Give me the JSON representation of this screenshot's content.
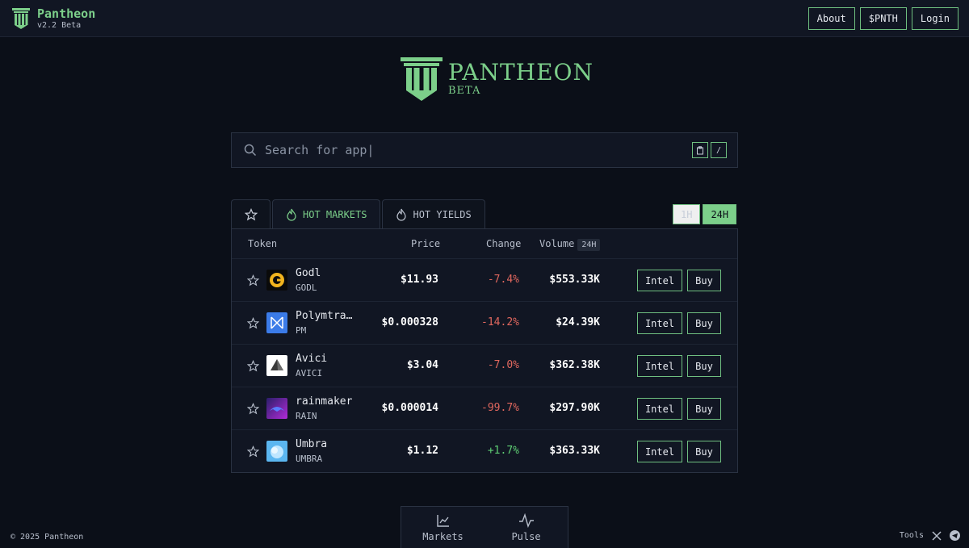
{
  "brand": {
    "name": "Pantheon",
    "version": "v2.2 Beta"
  },
  "nav": {
    "about": "About",
    "token": "$PNTH",
    "login": "Login"
  },
  "hero": {
    "title": "PANTHEON",
    "subtitle": "BETA"
  },
  "search": {
    "placeholder": "Search for app|",
    "shortcut_key": "/"
  },
  "tabs": {
    "hot_markets": "HOT MARKETS",
    "hot_yields": "HOT YIELDS"
  },
  "range": {
    "one_hour": "1H",
    "one_day": "24H"
  },
  "table": {
    "headers": {
      "token": "Token",
      "price": "Price",
      "change": "Change",
      "volume": "Volume",
      "volume_badge": "24H"
    },
    "rows": [
      {
        "name": "Godl",
        "symbol": "GODL",
        "price": "$11.93",
        "change": "-7.4%",
        "volume": "$553.33K",
        "intel": "Intel",
        "buy": "Buy"
      },
      {
        "name": "Polymtrade",
        "symbol": "PM",
        "price": "$0.000328",
        "change": "-14.2%",
        "volume": "$24.39K",
        "intel": "Intel",
        "buy": "Buy"
      },
      {
        "name": "Avici",
        "symbol": "AVICI",
        "price": "$3.04",
        "change": "-7.0%",
        "volume": "$362.38K",
        "intel": "Intel",
        "buy": "Buy"
      },
      {
        "name": "rainmaker",
        "symbol": "RAIN",
        "price": "$0.000014",
        "change": "-99.7%",
        "volume": "$297.90K",
        "intel": "Intel",
        "buy": "Buy"
      },
      {
        "name": "Umbra",
        "symbol": "UMBRA",
        "price": "$1.12",
        "change": "+1.7%",
        "volume": "$363.33K",
        "intel": "Intel",
        "buy": "Buy"
      }
    ]
  },
  "dock": {
    "markets": "Markets",
    "pulse": "Pulse"
  },
  "footer": {
    "copyright": "© 2025 Pantheon",
    "tools": "Tools"
  },
  "colors": {
    "accent": "#7ccf8a",
    "negative": "#e0675e",
    "positive": "#5fcf74",
    "background": "#0b0f18"
  }
}
